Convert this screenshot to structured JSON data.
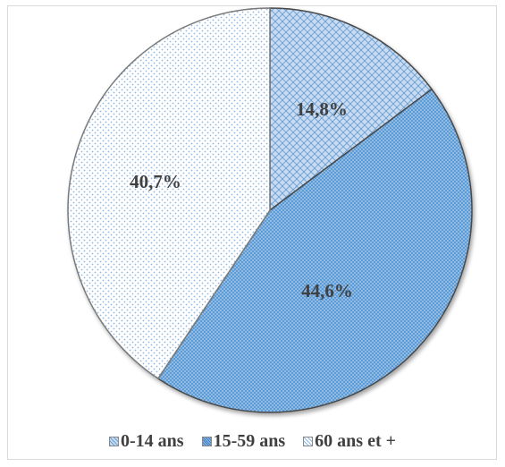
{
  "chart_data": {
    "type": "pie",
    "title": "",
    "legend_position": "bottom",
    "categories": [
      "0-14 ans",
      "15-59 ans",
      "60 ans et +"
    ],
    "values": [
      14.8,
      44.6,
      40.7
    ],
    "data_labels": [
      "14,8%",
      "44,6%",
      "40,7%"
    ],
    "start_angle_deg": 0,
    "direction": "clockwise",
    "colors": [
      "#b9d3ef",
      "#5b9bd5",
      "#ddeaf6"
    ],
    "fill_patterns": [
      "crosshatch",
      "dense-dots",
      "sparse-dots"
    ]
  }
}
